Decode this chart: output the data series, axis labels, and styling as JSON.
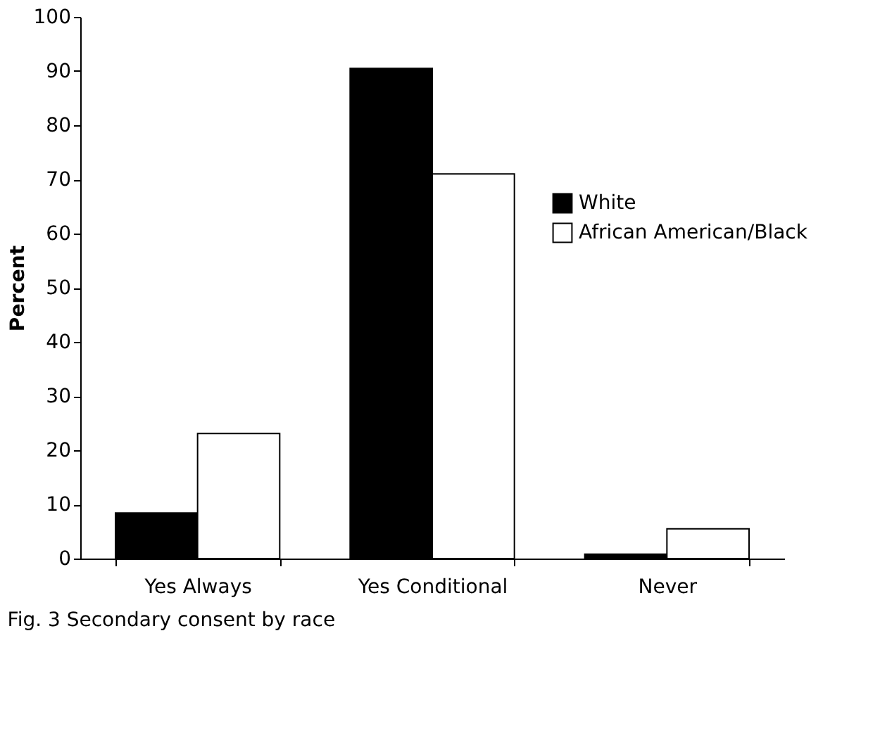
{
  "chart_data": {
    "type": "bar",
    "ylabel": "Percent",
    "categories": [
      "Yes Always",
      "Yes Conditional",
      "Never"
    ],
    "series": [
      {
        "name": "White",
        "color": "#000000",
        "values": [
          8.4,
          90.5,
          0.8
        ]
      },
      {
        "name": "African American/Black",
        "color": "#ffffff",
        "values": [
          23.1,
          71,
          5.5
        ]
      }
    ],
    "ylim": [
      0,
      100
    ],
    "yticks": [
      0,
      10,
      20,
      30,
      40,
      50,
      60,
      70,
      80,
      90,
      100
    ],
    "grid": false,
    "legend": "right",
    "annotations": [
      "Fig. 3 Secondary consent by race"
    ]
  }
}
